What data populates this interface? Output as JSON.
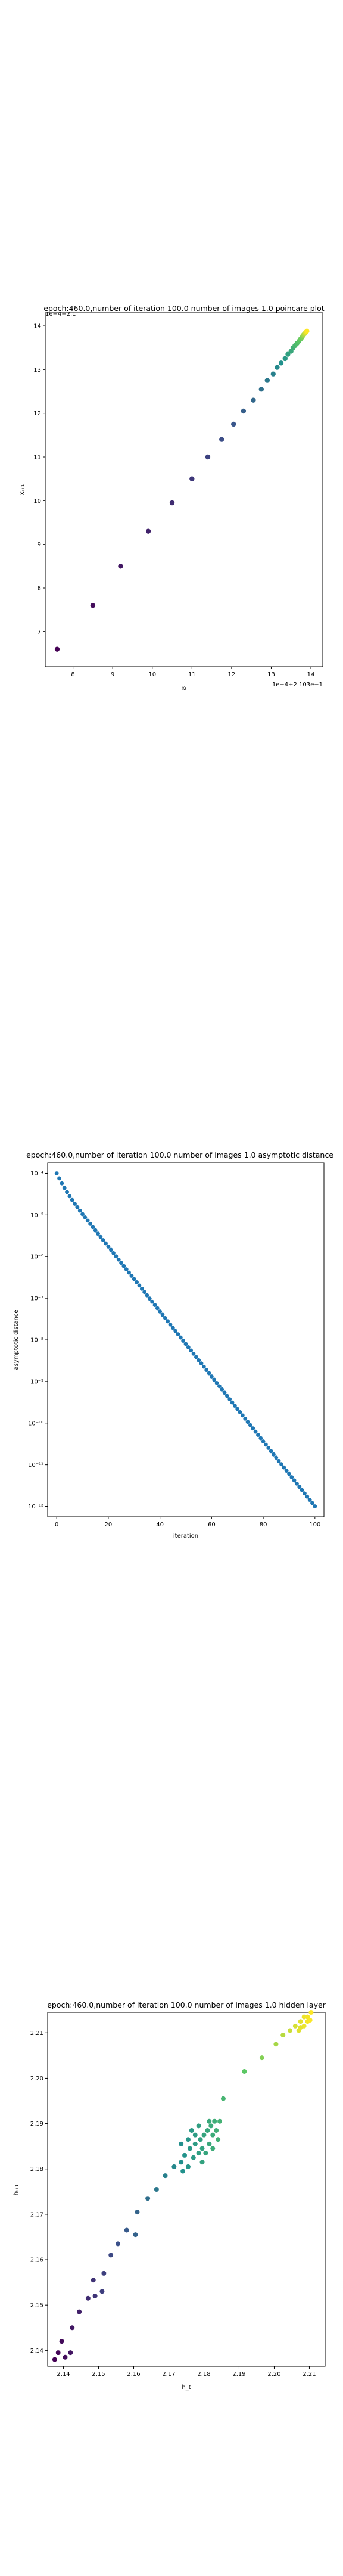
{
  "chart_data": [
    {
      "type": "scatter",
      "title": "epoch:460.0,number of iteration 100.0 number of images 1.0 poincare plot",
      "xlabel": "xₜ",
      "ylabel": "xₜ₊₁",
      "offset_text_overlay": "1e−4+2.1",
      "offset_text_x": "1e−4+2.103e−1",
      "xlim": [
        7.3,
        14.3
      ],
      "ylim": [
        6.2,
        14.3
      ],
      "xticks": [
        8,
        9,
        10,
        11,
        12,
        13,
        14
      ],
      "yticks": [
        7,
        8,
        9,
        10,
        11,
        12,
        13,
        14
      ],
      "grid": false,
      "colormap": "viridis",
      "points": [
        [
          7.6,
          6.6
        ],
        [
          8.5,
          7.6
        ],
        [
          9.2,
          8.5
        ],
        [
          9.9,
          9.3
        ],
        [
          10.5,
          9.95
        ],
        [
          11.0,
          10.5
        ],
        [
          11.4,
          11.0
        ],
        [
          11.75,
          11.4
        ],
        [
          12.05,
          11.75
        ],
        [
          12.3,
          12.05
        ],
        [
          12.55,
          12.3
        ],
        [
          12.75,
          12.55
        ],
        [
          12.9,
          12.75
        ],
        [
          13.05,
          12.9
        ],
        [
          13.15,
          13.05
        ],
        [
          13.25,
          13.15
        ],
        [
          13.35,
          13.25
        ],
        [
          13.42,
          13.35
        ],
        [
          13.5,
          13.42
        ],
        [
          13.55,
          13.5
        ],
        [
          13.6,
          13.55
        ],
        [
          13.65,
          13.6
        ],
        [
          13.7,
          13.65
        ],
        [
          13.74,
          13.7
        ],
        [
          13.78,
          13.74
        ],
        [
          13.8,
          13.78
        ],
        [
          13.82,
          13.8
        ],
        [
          13.84,
          13.82
        ],
        [
          13.86,
          13.84
        ],
        [
          13.88,
          13.86
        ],
        [
          13.9,
          13.88
        ]
      ]
    },
    {
      "type": "scatter",
      "title": "epoch:460.0,number of iteration 100.0  number of images 1.0 asymptotic distance",
      "xlabel": "iteration",
      "ylabel": "asymptotic distance",
      "xlim": [
        -3.5,
        103.5
      ],
      "ylim_log10": [
        -12.25,
        -3.75
      ],
      "yscale": "log",
      "xticks": [
        0,
        20,
        40,
        60,
        80,
        100
      ],
      "yticks": [
        "10⁻⁴",
        "10⁻⁵",
        "10⁻⁶",
        "10⁻⁷",
        "10⁻⁸",
        "10⁻⁹",
        "10⁻¹⁰",
        "10⁻¹¹",
        "10⁻¹²"
      ],
      "ytick_exponents": [
        -4,
        -5,
        -6,
        -7,
        -8,
        -9,
        -10,
        -11,
        -12
      ],
      "grid": false,
      "color": "#1f77b4",
      "x": [
        0,
        100
      ],
      "log10_y_knots": [
        [
          0,
          -4.0
        ],
        [
          1,
          -4.12
        ],
        [
          2,
          -4.24
        ],
        [
          3,
          -4.35
        ],
        [
          4,
          -4.45
        ],
        [
          5,
          -4.55
        ],
        [
          7,
          -4.73
        ],
        [
          10,
          -4.98
        ],
        [
          100,
          -12.0
        ]
      ]
    },
    {
      "type": "scatter",
      "title": "epoch:460.0,number of iteration 100.0  number of images 1.0 hidden layer",
      "xlabel": "h_t",
      "ylabel": "hₜ₊₁",
      "xlim": [
        2.1355,
        2.2145
      ],
      "ylim": [
        2.1365,
        2.2145
      ],
      "xticks": [
        2.14,
        2.15,
        2.16,
        2.17,
        2.18,
        2.19,
        2.2,
        2.21
      ],
      "yticks": [
        2.14,
        2.15,
        2.16,
        2.17,
        2.18,
        2.19,
        2.2,
        2.21
      ],
      "grid": false,
      "colormap": "viridis",
      "points": [
        [
          2.1375,
          2.138
        ],
        [
          2.1385,
          2.1395
        ],
        [
          2.1395,
          2.142
        ],
        [
          2.1405,
          2.1385
        ],
        [
          2.142,
          2.1395
        ],
        [
          2.1425,
          2.145
        ],
        [
          2.1445,
          2.1485
        ],
        [
          2.147,
          2.1515
        ],
        [
          2.1485,
          2.1555
        ],
        [
          2.149,
          2.152
        ],
        [
          2.151,
          2.153
        ],
        [
          2.1515,
          2.157
        ],
        [
          2.1535,
          2.161
        ],
        [
          2.1555,
          2.1635
        ],
        [
          2.158,
          2.1665
        ],
        [
          2.1605,
          2.1655
        ],
        [
          2.161,
          2.1705
        ],
        [
          2.164,
          2.1735
        ],
        [
          2.1665,
          2.1755
        ],
        [
          2.169,
          2.1785
        ],
        [
          2.1715,
          2.1805
        ],
        [
          2.1735,
          2.1815
        ],
        [
          2.174,
          2.1795
        ],
        [
          2.1745,
          2.183
        ],
        [
          2.1755,
          2.1805
        ],
        [
          2.176,
          2.1845
        ],
        [
          2.177,
          2.1825
        ],
        [
          2.1775,
          2.1855
        ],
        [
          2.1785,
          2.1835
        ],
        [
          2.179,
          2.1865
        ],
        [
          2.1795,
          2.1845
        ],
        [
          2.18,
          2.1875
        ],
        [
          2.181,
          2.1885
        ],
        [
          2.1815,
          2.1855
        ],
        [
          2.182,
          2.1895
        ],
        [
          2.1825,
          2.1875
        ],
        [
          2.183,
          2.1905
        ],
        [
          2.1835,
          2.1885
        ],
        [
          2.184,
          2.1865
        ],
        [
          2.1845,
          2.1905
        ],
        [
          2.1755,
          2.1865
        ],
        [
          2.1765,
          2.1885
        ],
        [
          2.1785,
          2.1895
        ],
        [
          2.1795,
          2.1815
        ],
        [
          2.1805,
          2.1835
        ],
        [
          2.1815,
          2.1905
        ],
        [
          2.1775,
          2.1875
        ],
        [
          2.1825,
          2.1845
        ],
        [
          2.1735,
          2.1855
        ],
        [
          2.1855,
          2.1955
        ],
        [
          2.1915,
          2.2015
        ],
        [
          2.1965,
          2.2045
        ],
        [
          2.2005,
          2.2075
        ],
        [
          2.2025,
          2.2095
        ],
        [
          2.2045,
          2.2105
        ],
        [
          2.206,
          2.2115
        ],
        [
          2.2075,
          2.2125
        ],
        [
          2.2085,
          2.2135
        ],
        [
          2.2095,
          2.2135
        ],
        [
          2.2105,
          2.2145
        ],
        [
          2.207,
          2.2105
        ],
        [
          2.2085,
          2.2115
        ],
        [
          2.2095,
          2.2125
        ],
        [
          2.2075,
          2.2112
        ],
        [
          2.2102,
          2.2128
        ]
      ]
    }
  ]
}
